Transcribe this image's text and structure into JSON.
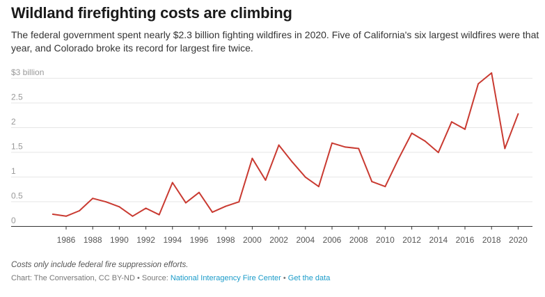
{
  "title": "Wildland firefighting costs are climbing",
  "subtitle": "The federal government spent nearly $2.3 billion fighting wildfires in 2020. Five of California's six largest wildfires were that year, and Colorado broke its record for largest fire twice.",
  "note": "Costs only include federal fire suppression efforts.",
  "credit": {
    "prefix": "Chart: The Conversation, CC BY-ND • Source: ",
    "source_link": "National Interagency Fire Center",
    "separator": " • ",
    "data_link": "Get the data"
  },
  "colors": {
    "line": "#c93a31",
    "grid": "#e6e6e6",
    "axis": "#333333",
    "tick_text": "#555555",
    "ytick_text": "#999999",
    "link": "#1a9bc9"
  },
  "chart_data": {
    "type": "line",
    "title": "Wildland firefighting costs are climbing",
    "xlabel": "",
    "ylabel": "",
    "xlim": [
      1984,
      2020.5
    ],
    "ylim": [
      0,
      3
    ],
    "grid": true,
    "legend": "none",
    "y_ticks": [
      {
        "value": 0,
        "label": "0"
      },
      {
        "value": 0.5,
        "label": "0.5"
      },
      {
        "value": 1,
        "label": "1"
      },
      {
        "value": 1.5,
        "label": "1.5"
      },
      {
        "value": 2,
        "label": "2"
      },
      {
        "value": 2.5,
        "label": "2.5"
      },
      {
        "value": 3,
        "label": "$3 billion"
      }
    ],
    "x_ticks": [
      "1986",
      "1988",
      "1990",
      "1992",
      "1994",
      "1996",
      "1998",
      "2000",
      "2002",
      "2004",
      "2006",
      "2008",
      "2010",
      "2012",
      "2014",
      "2016",
      "2018",
      "2020"
    ],
    "series": [
      {
        "color": "#c93a31",
        "x": [
          1985,
          1986,
          1987,
          1988,
          1989,
          1990,
          1991,
          1992,
          1993,
          1994,
          1995,
          1996,
          1997,
          1998,
          1999,
          2000,
          2001,
          2002,
          2003,
          2004,
          2005,
          2006,
          2007,
          2008,
          2009,
          2010,
          2011,
          2012,
          2013,
          2014,
          2015,
          2016,
          2017,
          2018,
          2019,
          2020
        ],
        "values": [
          0.24,
          0.2,
          0.31,
          0.56,
          0.49,
          0.39,
          0.2,
          0.36,
          0.23,
          0.88,
          0.47,
          0.68,
          0.28,
          0.4,
          0.49,
          1.37,
          0.93,
          1.64,
          1.3,
          0.99,
          0.8,
          1.68,
          1.6,
          1.57,
          0.9,
          0.8,
          1.36,
          1.88,
          1.72,
          1.49,
          2.11,
          1.96,
          2.88,
          3.1,
          1.57,
          2.27
        ]
      }
    ]
  }
}
